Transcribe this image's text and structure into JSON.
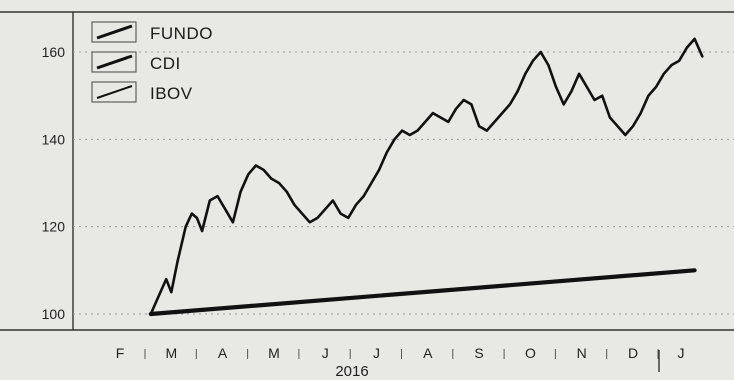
{
  "chart_data": {
    "type": "line",
    "title": "",
    "xlabel": "2016",
    "ylabel": "",
    "ylim": [
      98,
      166
    ],
    "yticks": [
      100,
      120,
      140,
      160
    ],
    "grid": true,
    "legend_position": "top-left",
    "x_labels": [
      "F",
      "M",
      "A",
      "M",
      "J",
      "J",
      "A",
      "S",
      "O",
      "N",
      "D",
      "J"
    ],
    "year_label": "2016",
    "series": [
      {
        "name": "FUNDO",
        "color": "#111111",
        "x": [
          1.6,
          1.75,
          1.9,
          2.0,
          2.12,
          2.28,
          2.4,
          2.5,
          2.6,
          2.75,
          2.9,
          3.05,
          3.2,
          3.35,
          3.5,
          3.65,
          3.8,
          3.95,
          4.1,
          4.25,
          4.4,
          4.55,
          4.7,
          4.85,
          5.0,
          5.15,
          5.3,
          5.45,
          5.6,
          5.75,
          5.9,
          6.05,
          6.2,
          6.35,
          6.5,
          6.65,
          6.8,
          6.95,
          7.1,
          7.25,
          7.4,
          7.55,
          7.7,
          7.85,
          8.0,
          8.15,
          8.3,
          8.45,
          8.6,
          8.75,
          8.9,
          9.05,
          9.2,
          9.35,
          9.5,
          9.65,
          9.8,
          9.95,
          10.1,
          10.25,
          10.4,
          10.55,
          10.7,
          10.85,
          11.0,
          11.15,
          11.3,
          11.45,
          11.6,
          11.75,
          11.9,
          12.05,
          12.2,
          12.35
        ],
        "values": [
          100,
          104,
          108,
          105,
          112,
          120,
          123,
          122,
          119,
          126,
          127,
          124,
          121,
          128,
          132,
          134,
          133,
          131,
          130,
          128,
          125,
          123,
          121,
          122,
          124,
          126,
          123,
          122,
          125,
          127,
          130,
          133,
          137,
          140,
          142,
          141,
          142,
          144,
          146,
          145,
          144,
          147,
          149,
          148,
          143,
          142,
          144,
          146,
          148,
          151,
          155,
          158,
          160,
          157,
          152,
          148,
          151,
          155,
          152,
          149,
          150,
          145,
          143,
          141,
          143,
          146,
          150,
          152,
          155,
          157,
          158,
          161,
          163,
          159
        ]
      },
      {
        "name": "CDI",
        "color": "#111111",
        "x": [
          1.6,
          12.2
        ],
        "values": [
          100,
          110
        ]
      },
      {
        "name": "IBOV",
        "color": "#333333",
        "x": [],
        "values": []
      }
    ]
  }
}
